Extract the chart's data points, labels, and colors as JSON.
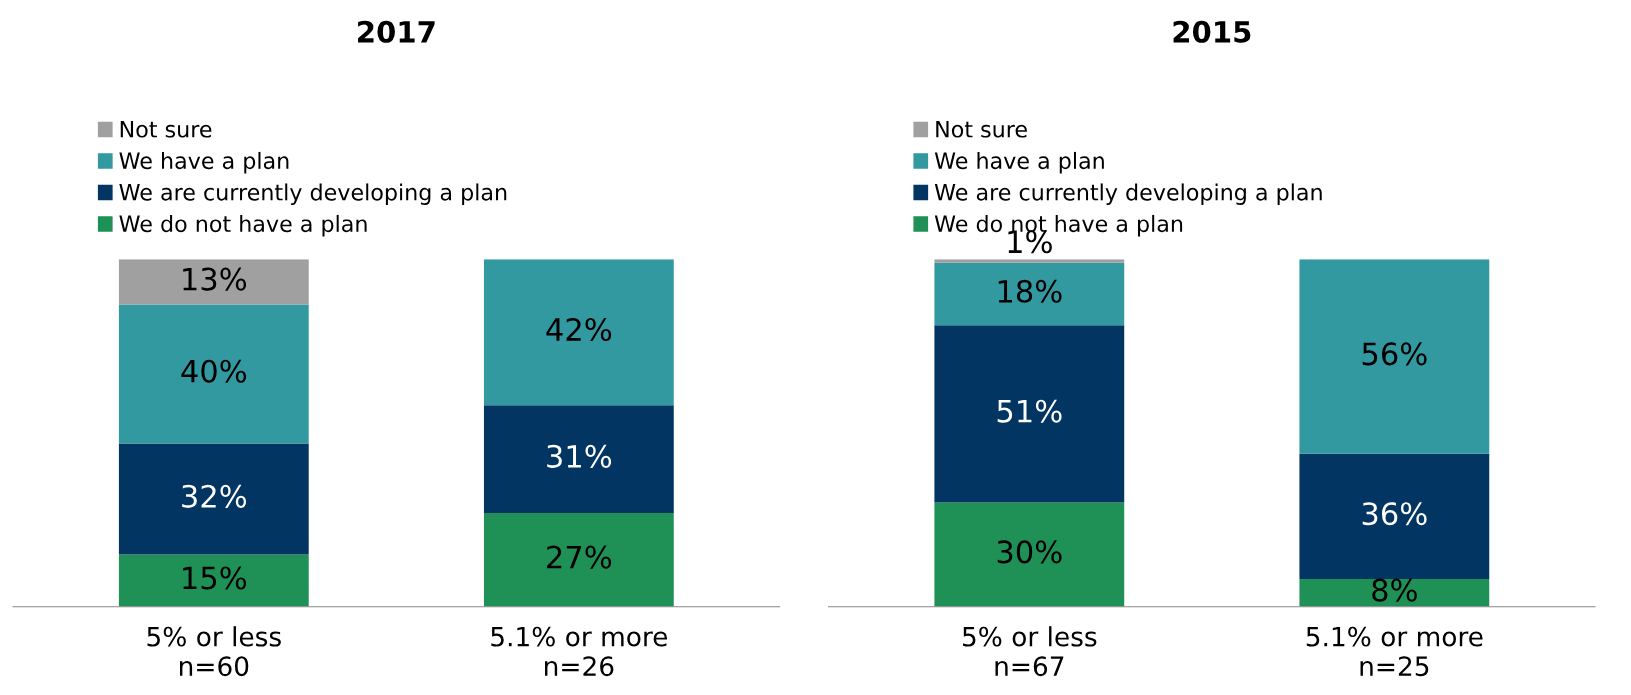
{
  "chart_data": [
    {
      "type": "bar",
      "title": "2017",
      "stacked": true,
      "legend": "top left",
      "categories": [
        "5% or less\nn=60",
        "5.1% or more\nn=26"
      ],
      "series": [
        {
          "name": "We do not have a plan",
          "color": "#1f9156",
          "values": [
            15,
            27
          ],
          "value_labels": [
            "15%",
            "27%"
          ]
        },
        {
          "name": "We are currently developing a plan",
          "color": "#023561",
          "values": [
            32,
            31
          ],
          "value_labels": [
            "32%",
            "31%"
          ]
        },
        {
          "name": "We have a plan",
          "color": "#3399a0",
          "values": [
            40,
            42
          ],
          "value_labels": [
            "40%",
            "42%"
          ]
        },
        {
          "name": "Not sure",
          "color": "#a0a0a0",
          "values": [
            13,
            null
          ],
          "value_labels": [
            "13%",
            null
          ]
        }
      ]
    },
    {
      "type": "bar",
      "title": "2015",
      "stacked": true,
      "legend": "top left",
      "categories": [
        "5% or less\nn=67",
        "5.1% or more\nn=25"
      ],
      "series": [
        {
          "name": "We do not have a plan",
          "color": "#1f9156",
          "values": [
            30,
            8
          ],
          "value_labels": [
            "30%",
            "8%"
          ]
        },
        {
          "name": "We are currently developing a plan",
          "color": "#023561",
          "values": [
            51,
            36
          ],
          "value_labels": [
            "51%",
            "36%"
          ]
        },
        {
          "name": "We have a plan",
          "color": "#3399a0",
          "values": [
            18,
            56
          ],
          "value_labels": [
            "18%",
            "56%"
          ]
        },
        {
          "name": "Not sure",
          "color": "#a0a0a0",
          "values": [
            1,
            null
          ],
          "value_labels": [
            "1%",
            null
          ]
        }
      ]
    }
  ]
}
